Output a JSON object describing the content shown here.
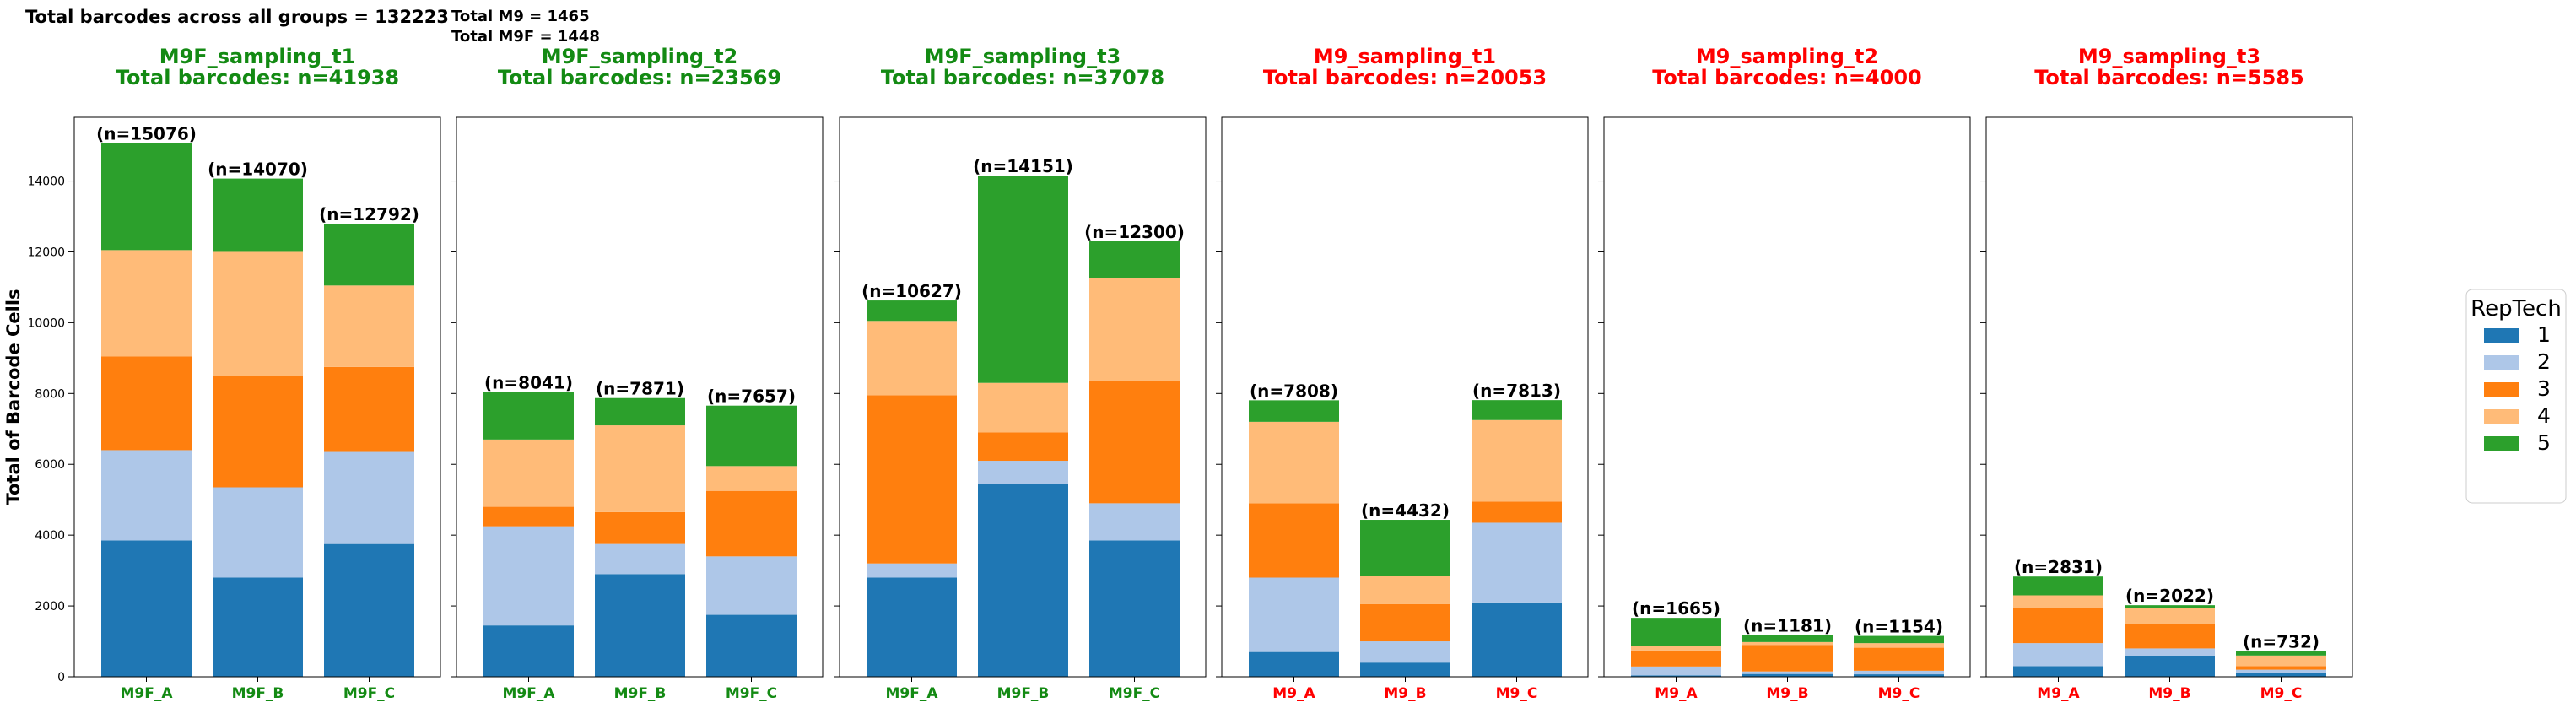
{
  "header": {
    "total_all": "Total barcodes across all groups = 132223",
    "total_m9": "Total M9  = 1465",
    "total_m9f": "Total M9F = 1448"
  },
  "colors": {
    "green_title": "#138a13",
    "red_title": "#ff0000",
    "series": [
      "#1f77b4",
      "#aec7e8",
      "#ff7f0e",
      "#ffbb78",
      "#2ca02c"
    ]
  },
  "chart_data": {
    "type": "bar",
    "stacked": true,
    "ylabel": "Total of Barcode Cells",
    "ylim": [
      0,
      15800
    ],
    "yticks": [
      0,
      2000,
      4000,
      6000,
      8000,
      10000,
      12000,
      14000
    ],
    "grid": false,
    "shared_y": true,
    "legend": {
      "title": "RepTech",
      "placement": "right",
      "entries": [
        "1",
        "2",
        "3",
        "4",
        "5"
      ]
    },
    "panels": [
      {
        "title_line1": "M9F_sampling_t1",
        "title_line2": "Total barcodes: n=41938",
        "title_color": "green",
        "categories": [
          "M9F_A",
          "M9F_B",
          "M9F_C"
        ],
        "totals": [
          "(n=15076)",
          "(n=14070)",
          "(n=12792)"
        ],
        "stacks": [
          [
            3850,
            2550,
            2650,
            3000,
            3026
          ],
          [
            2800,
            2550,
            3150,
            3500,
            2070
          ],
          [
            3750,
            2600,
            2400,
            2300,
            1742
          ]
        ]
      },
      {
        "title_line1": "M9F_sampling_t2",
        "title_line2": "Total barcodes: n=23569",
        "title_color": "green",
        "categories": [
          "M9F_A",
          "M9F_B",
          "M9F_C"
        ],
        "totals": [
          "(n=8041)",
          "(n=7871)",
          "(n=7657)"
        ],
        "stacks": [
          [
            1450,
            2800,
            550,
            1900,
            1341
          ],
          [
            2900,
            850,
            900,
            2450,
            771
          ],
          [
            1750,
            1650,
            1850,
            700,
            1707
          ]
        ]
      },
      {
        "title_line1": "M9F_sampling_t3",
        "title_line2": "Total barcodes: n=37078",
        "title_color": "green",
        "categories": [
          "M9F_A",
          "M9F_B",
          "M9F_C"
        ],
        "totals": [
          "(n=10627)",
          "(n=14151)",
          "(n=12300)"
        ],
        "stacks": [
          [
            2800,
            400,
            4750,
            2100,
            577
          ],
          [
            5450,
            650,
            800,
            1400,
            5851
          ],
          [
            3850,
            1050,
            3450,
            2900,
            1050
          ]
        ]
      },
      {
        "title_line1": "M9_sampling_t1",
        "title_line2": "Total barcodes: n=20053",
        "title_color": "red",
        "categories": [
          "M9_A",
          "M9_B",
          "M9_C"
        ],
        "totals": [
          "(n=7808)",
          "(n=4432)",
          "(n=7813)"
        ],
        "stacks": [
          [
            700,
            2100,
            2100,
            2300,
            608
          ],
          [
            400,
            600,
            1050,
            800,
            1582
          ],
          [
            2100,
            2250,
            600,
            2300,
            563
          ]
        ]
      },
      {
        "title_line1": "M9_sampling_t2",
        "title_line2": "Total barcodes: n=4000",
        "title_color": "red",
        "categories": [
          "M9_A",
          "M9_B",
          "M9_C"
        ],
        "totals": [
          "(n=1665)",
          "(n=1181)",
          "(n=1154)"
        ],
        "stacks": [
          [
            40,
            250,
            450,
            120,
            805
          ],
          [
            80,
            70,
            750,
            80,
            201
          ],
          [
            70,
            100,
            650,
            130,
            204
          ]
        ]
      },
      {
        "title_line1": "M9_sampling_t3",
        "title_line2": "Total barcodes: n=5585",
        "title_color": "red",
        "categories": [
          "M9_A",
          "M9_B",
          "M9_C"
        ],
        "totals": [
          "(n=2831)",
          "(n=2022)",
          "(n=732)"
        ],
        "stacks": [
          [
            300,
            650,
            1000,
            350,
            531
          ],
          [
            600,
            200,
            700,
            450,
            72
          ],
          [
            120,
            80,
            100,
            300,
            132
          ]
        ]
      }
    ]
  }
}
